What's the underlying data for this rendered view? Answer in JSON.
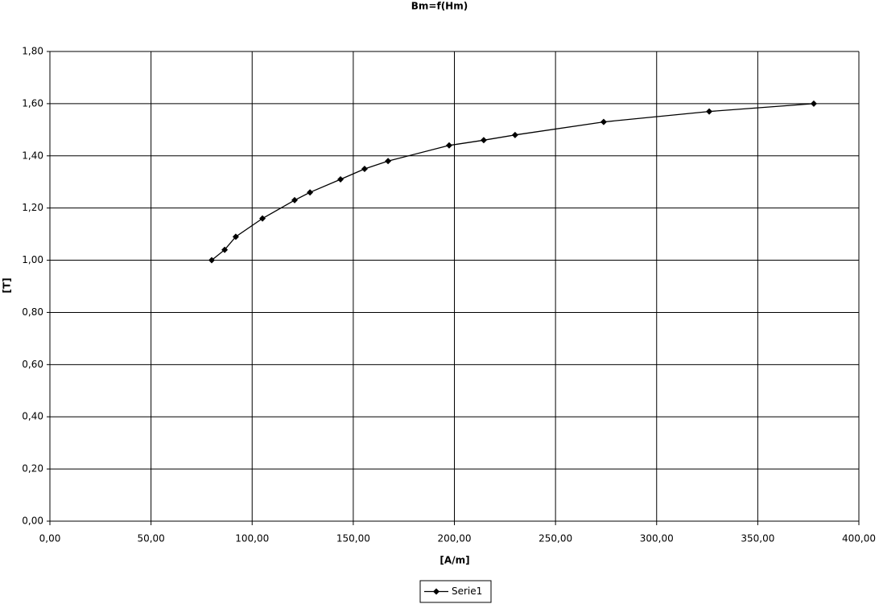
{
  "chart_data": {
    "type": "line",
    "title": "Bm=f(Hm)",
    "x_label": "[A/m]",
    "y_label": "[T]",
    "x": [
      80,
      86.4,
      91.9,
      105.1,
      121,
      128.6,
      143.7,
      155.6,
      167.2,
      197.4,
      214.5,
      230,
      273.8,
      326,
      377.7
    ],
    "series": [
      {
        "name": "Serie1",
        "color": "#000000",
        "values": [
          1.0,
          1.04,
          1.09,
          1.16,
          1.23,
          1.26,
          1.31,
          1.35,
          1.38,
          1.44,
          1.46,
          1.48,
          1.53,
          1.57,
          1.6
        ]
      }
    ],
    "xlim": [
      0,
      400
    ],
    "xticks": [
      {
        "value": 0,
        "label": "0,00"
      },
      {
        "value": 50,
        "label": "50,00"
      },
      {
        "value": 100,
        "label": "100,00"
      },
      {
        "value": 150,
        "label": "150,00"
      },
      {
        "value": 200,
        "label": "200,00"
      },
      {
        "value": 250,
        "label": "250,00"
      },
      {
        "value": 300,
        "label": "300,00"
      },
      {
        "value": 350,
        "label": "350,00"
      },
      {
        "value": 400,
        "label": "400,00"
      }
    ],
    "ylim": [
      0,
      1.8
    ],
    "yticks": [
      {
        "value": 0,
        "label": "0,00"
      },
      {
        "value": 0.2,
        "label": "0,20"
      },
      {
        "value": 0.4,
        "label": "0,40"
      },
      {
        "value": 0.6,
        "label": "0,60"
      },
      {
        "value": 0.8,
        "label": "0,80"
      },
      {
        "value": 1.0,
        "label": "1,00"
      },
      {
        "value": 1.2,
        "label": "1,20"
      },
      {
        "value": 1.4,
        "label": "1,40"
      },
      {
        "value": 1.6,
        "label": "1,60"
      },
      {
        "value": 1.8,
        "label": "1,80"
      }
    ],
    "grid": true,
    "legend": "bottom"
  }
}
